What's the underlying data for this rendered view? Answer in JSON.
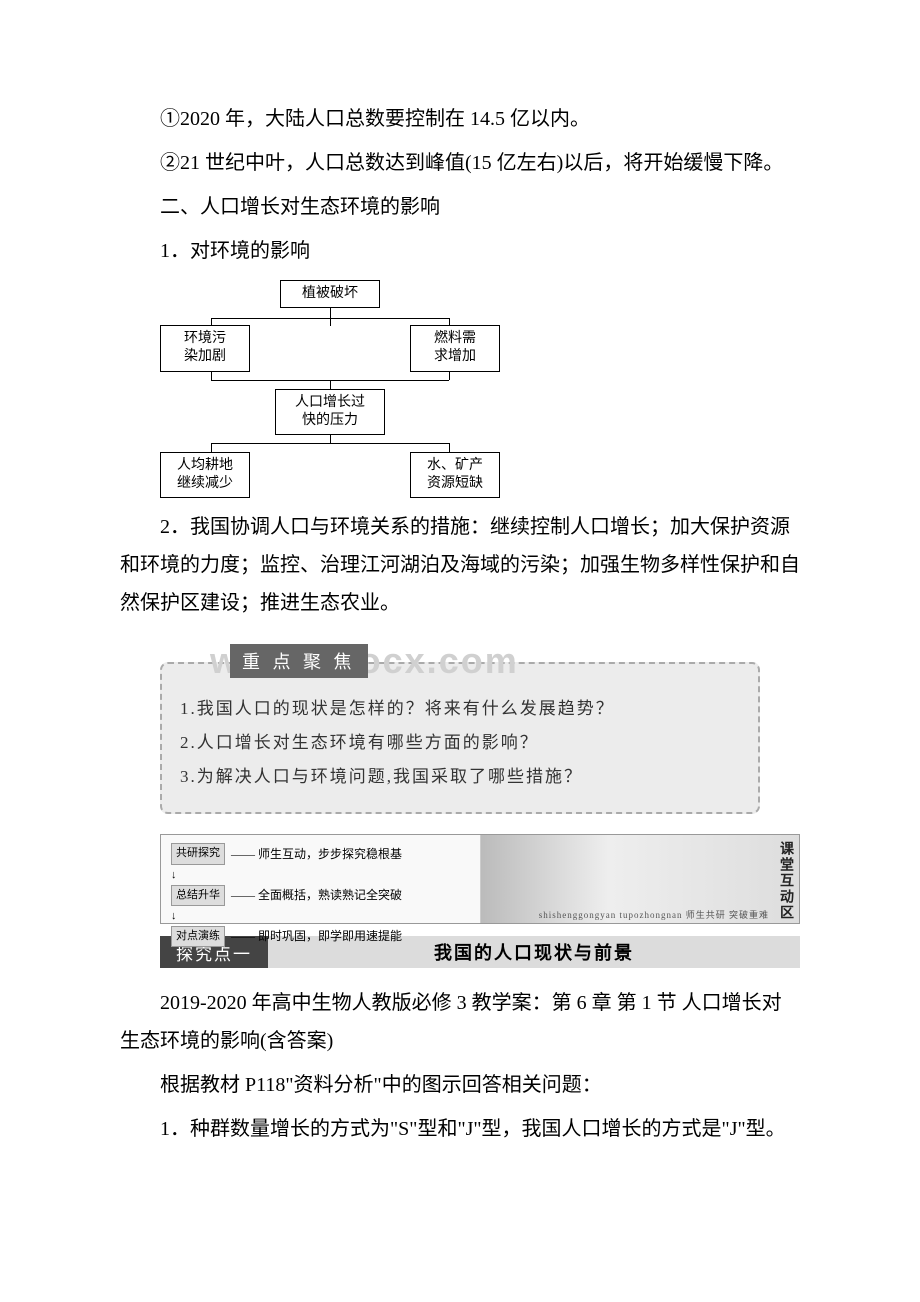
{
  "p1": "①2020 年，大陆人口总数要控制在 14.5 亿以内。",
  "p2": "②21 世纪中叶，人口总数达到峰值(15 亿左右)以后，将开始缓慢下降。",
  "p3": "二、人口增长对生态环境的影响",
  "p4": "1．对环境的影响",
  "diagram1": {
    "top": "植被破坏",
    "left1": "环境污\n染加剧",
    "right1": "燃料需\n求增加",
    "center": "人口增长过\n快的压力",
    "left2": "人均耕地\n继续减少",
    "right2": "水、矿产\n资源短缺"
  },
  "p5": "2．我国协调人口与环境关系的措施：继续控制人口增长；加大保护资源和环境的力度；监控、治理江河湖泊及海域的污染；加强生物多样性保护和自然保护区建设；推进生态农业。",
  "focus": {
    "watermark": "www.bdocx.com",
    "title": "重 点 聚 焦",
    "q1": "1.我国人口的现状是怎样的？将来有什么发展趋势？",
    "q2": "2.人口增长对生态环境有哪些方面的影响？",
    "q3": "3.为解决人口与环境问题,我国采取了哪些措施？"
  },
  "interact": {
    "row1_label": "共研探究",
    "row1_text": "—— 师生互动，步步探究稳根基",
    "row2_label": "总结升华",
    "row2_text": "—— 全面概括，熟读熟记全突破",
    "row3_label": "对点演练",
    "row3_text": "—— 即时巩固，即学即用速提能",
    "vtext": "课堂互动区",
    "sub": "shishenggongyan  tupozhongnan  师生共研 突破重难"
  },
  "section": {
    "left": "探究点一",
    "right": "我国的人口现状与前景"
  },
  "p6": "2019-2020 年高中生物人教版必修 3 教学案：第 6 章 第 1 节 人口增长对生态环境的影响(含答案)",
  "p7": "根据教材 P118\"资料分析\"中的图示回答相关问题：",
  "p8": "1．种群数量增长的方式为\"S\"型和\"J\"型，我国人口增长的方式是\"J\"型。"
}
